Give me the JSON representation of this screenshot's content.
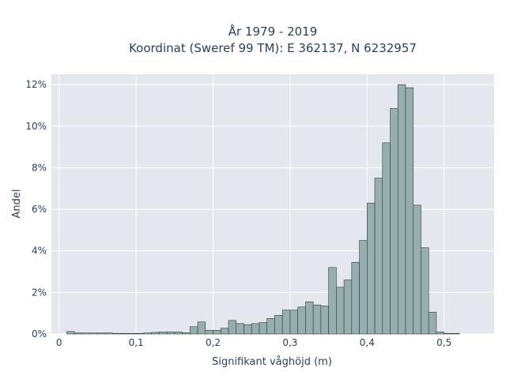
{
  "chart_data": {
    "type": "bar",
    "title_line1": "År 1979 - 2019",
    "title_line2": "Koordinat (Sweref 99 TM): E 362137, N 6232957",
    "xlabel": "Signifikant våghöjd (m)",
    "ylabel": "Andel",
    "xlim": [
      -0.01,
      0.565
    ],
    "ylim": [
      0,
      12.5
    ],
    "bin_width": 0.01,
    "x_ticks": [
      0,
      0.1,
      0.2,
      0.3,
      0.4,
      0.5
    ],
    "x_tick_labels": [
      "0",
      "0,1",
      "0,2",
      "0,3",
      "0,4",
      "0,5"
    ],
    "y_ticks": [
      0,
      2,
      4,
      6,
      8,
      10,
      12
    ],
    "y_tick_labels": [
      "0%",
      "2%",
      "4%",
      "6%",
      "8%",
      "10%",
      "12%"
    ],
    "bin_starts": [
      0.01,
      0.02,
      0.03,
      0.04,
      0.05,
      0.06,
      0.07,
      0.08,
      0.09,
      0.1,
      0.11,
      0.12,
      0.13,
      0.14,
      0.15,
      0.16,
      0.17,
      0.18,
      0.19,
      0.2,
      0.21,
      0.22,
      0.23,
      0.24,
      0.25,
      0.26,
      0.27,
      0.28,
      0.29,
      0.3,
      0.31,
      0.32,
      0.33,
      0.34,
      0.35,
      0.36,
      0.37,
      0.38,
      0.39,
      0.4,
      0.41,
      0.42,
      0.43,
      0.44,
      0.45,
      0.46,
      0.47,
      0.48,
      0.49,
      0.5,
      0.51,
      0.52,
      0.53
    ],
    "values": [
      0.12,
      0.05,
      0.05,
      0.05,
      0.05,
      0.05,
      0.03,
      0.03,
      0.03,
      0.03,
      0.05,
      0.08,
      0.1,
      0.1,
      0.1,
      0.06,
      0.35,
      0.58,
      0.18,
      0.18,
      0.28,
      0.65,
      0.5,
      0.45,
      0.5,
      0.55,
      0.75,
      0.9,
      1.15,
      1.15,
      1.3,
      1.55,
      1.4,
      1.35,
      3.2,
      2.25,
      2.6,
      3.45,
      4.5,
      6.3,
      7.5,
      9.2,
      10.85,
      12.0,
      11.85,
      6.2,
      4.15,
      1.05,
      0.1,
      0.03,
      0.03,
      0.0,
      0.0
    ],
    "colors": {
      "plot_bg": "#e5e7ef",
      "grid": "#ffffff",
      "bar_fill": "#97aeae",
      "bar_stroke": "#2f3d3d",
      "text": "#2a3f5f"
    }
  }
}
